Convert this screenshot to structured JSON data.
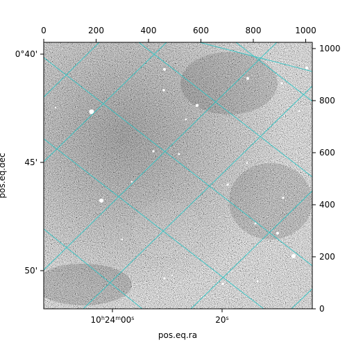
{
  "figure": {
    "xlabel_bottom": "pos.eq.ra",
    "ylabel_left": "pos.eq.dec",
    "top_ticks": [
      "0",
      "200",
      "400",
      "600",
      "800",
      "1000"
    ],
    "right_ticks": [
      "0",
      "200",
      "400",
      "600",
      "800",
      "1000"
    ],
    "left_ticks": [
      "0°40'",
      "45'",
      "50'"
    ],
    "bottom_ticks": {
      "ra_hms": {
        "h": "10",
        "m": "24",
        "s": "00",
        "s_label": "s",
        "h_label": "h",
        "m_label": "m"
      },
      "ra_20": "20",
      "ra_20_unit": "s"
    },
    "colors": {
      "grid": "#2ec4c4",
      "frame": "#000000",
      "background": "#ffffff"
    },
    "image": {
      "type": "grayscale-noise-astronomical",
      "pixel_range": [
        0,
        1024
      ]
    }
  }
}
